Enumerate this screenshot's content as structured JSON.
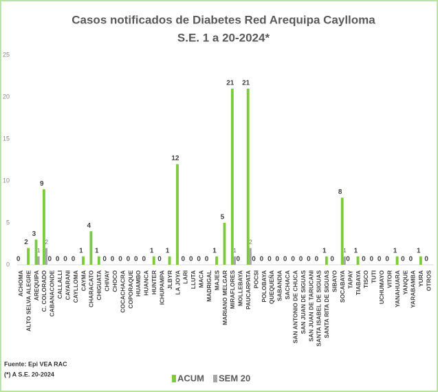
{
  "chart_data": {
    "type": "bar",
    "title": "Casos notificados de Diabetes  Red Arequipa Caylloma",
    "subtitle": "S.E. 1 a  20-2024*",
    "source": "Fuente: Epi VEA RAC",
    "footnote": "(*) A S.E. 20-2024",
    "categories": [
      "ACHOMA",
      "ALTO SELVA ALEGRE",
      "AREQUIPA",
      "C. COLORADO",
      "CABANACONDE",
      "CALLALLI",
      "CAYARANI",
      "CAYLLOMA",
      "CAYMA",
      "CHARACATO",
      "CHIGUATA",
      "CHIVAY",
      "CHOCO",
      "COCACHACRA",
      "COPORAQUE",
      "HUAMBO",
      "HUANCA",
      "HUNTER",
      "ICHUPAMPA",
      "JLBYR",
      "LA JOYA",
      "LARI",
      "LLUTA",
      "MACA",
      "MADRIGAL",
      "MAJES",
      "MARIANO MELGAR",
      "MIRAFLORES",
      "MOLLEBAYA",
      "PAUCARPATA",
      "POCSI",
      "POLOBAYA",
      "QUEQUEÑA",
      "SABANDIA",
      "SACHACA",
      "SAN ANTONIO DE CHUCA",
      "SAN JUAN DE SIGUAS",
      "SAN JUAN DE TARUCANI",
      "SANTA ISABEL DE SIGUAS",
      "SANTA RITA DE SIGUAS",
      "SIBAYO",
      "SOCABAYA",
      "TAPAY",
      "TIABAYA",
      "TISCO",
      "TUTI",
      "UCHUMAYO",
      "VITOR",
      "YANAHUARA",
      "YANQUE",
      "YARABAMBA",
      "YURA",
      "OTROS"
    ],
    "series": [
      {
        "name": "ACUM",
        "color": "#7dcb3c",
        "values": [
          0,
          2,
          3,
          9,
          0,
          0,
          0,
          0,
          1,
          4,
          1,
          0,
          0,
          0,
          0,
          0,
          0,
          1,
          0,
          1,
          12,
          0,
          0,
          0,
          0,
          1,
          5,
          21,
          0,
          21,
          0,
          0,
          0,
          0,
          0,
          0,
          0,
          0,
          0,
          1,
          0,
          8,
          0,
          1,
          0,
          0,
          0,
          0,
          1,
          0,
          0,
          1,
          0
        ]
      },
      {
        "name": "SEM 20",
        "color": "#a6a6a6",
        "values": [
          null,
          null,
          1,
          2,
          null,
          null,
          null,
          null,
          null,
          null,
          null,
          null,
          null,
          null,
          null,
          null,
          null,
          null,
          null,
          null,
          null,
          null,
          null,
          null,
          null,
          null,
          null,
          1,
          null,
          2,
          null,
          null,
          null,
          null,
          null,
          null,
          null,
          null,
          null,
          null,
          null,
          1,
          null,
          null,
          null,
          null,
          null,
          null,
          null,
          null,
          null,
          null,
          null
        ]
      }
    ],
    "ylim": [
      0,
      25
    ],
    "yticks": [
      0,
      5,
      10,
      15,
      20,
      25
    ],
    "grid": false,
    "legend": "bottom"
  }
}
